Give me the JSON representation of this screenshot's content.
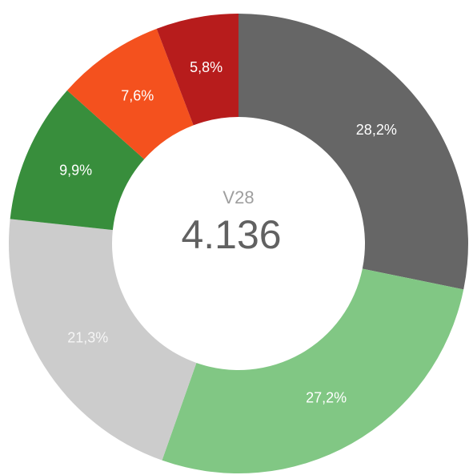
{
  "chart_data": {
    "type": "donut",
    "center_title": "V28",
    "center_text": "4.136",
    "categories": [
      null,
      null,
      null,
      null,
      null,
      null
    ],
    "values": [
      28.2,
      27.2,
      21.3,
      9.9,
      7.6,
      5.8
    ],
    "value_labels": [
      "28,2%",
      "27,2%",
      "21,3%",
      "9,9%",
      "7,6%",
      "5,8%"
    ],
    "colors": [
      "#666666",
      "#81c784",
      "#cccccc",
      "#388e3c",
      "#f4511e",
      "#b71c1c"
    ]
  }
}
